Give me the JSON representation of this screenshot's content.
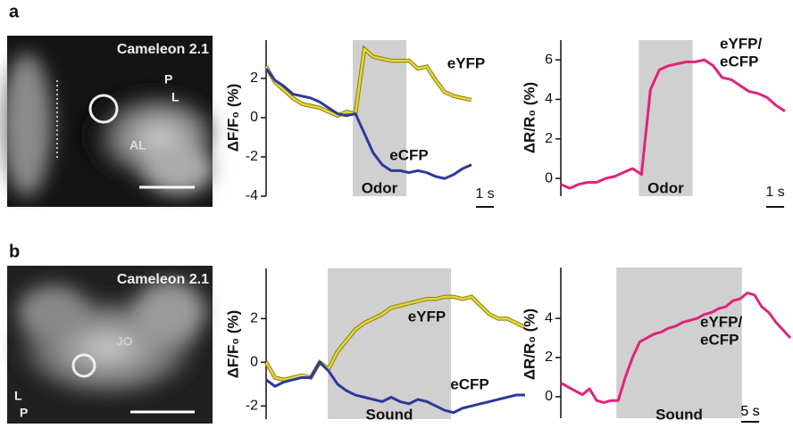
{
  "panel_letters": [
    "a",
    "b"
  ],
  "image_panels": [
    {
      "title": "Cameleon 2.1",
      "labels": [
        "P",
        "L",
        "AL"
      ]
    },
    {
      "title": "Cameleon 2.1",
      "labels": [
        "JO",
        "L",
        "P"
      ]
    }
  ],
  "chart_data": [
    {
      "type": "line",
      "y_label": "ΔF/F₀ (%)",
      "xlim": [
        0,
        11.6
      ],
      "ylim": [
        -4,
        3.95
      ],
      "yticks": [
        -4,
        -2,
        0,
        2
      ],
      "x": [
        0,
        0.5,
        1,
        1.5,
        2,
        2.5,
        3,
        3.5,
        4,
        4.5,
        5,
        5.5,
        6,
        6.5,
        7,
        7.5,
        8,
        8.5,
        9,
        9.5,
        10,
        10.5,
        11,
        11.5
      ],
      "series": [
        {
          "name": "eYFP",
          "color": "#e6d63a",
          "values": [
            2.6,
            1.8,
            1.4,
            1.0,
            0.7,
            0.6,
            0.5,
            0.3,
            0.1,
            0.3,
            0.2,
            3.5,
            3.1,
            3.0,
            2.9,
            2.9,
            2.9,
            2.5,
            2.6,
            1.9,
            1.3,
            1.1,
            1.0,
            0.9
          ]
        },
        {
          "name": "eCFP",
          "color": "#2b3a9a",
          "values": [
            2.5,
            1.9,
            1.6,
            1.2,
            1.1,
            1.0,
            0.8,
            0.5,
            0.2,
            0.1,
            0.2,
            -0.8,
            -1.8,
            -2.4,
            -2.7,
            -2.7,
            -2.8,
            -2.7,
            -2.8,
            -3.0,
            -3.1,
            -2.9,
            -2.6,
            -2.4
          ]
        }
      ],
      "stimulus": {
        "label": "Odor",
        "start": 4.85,
        "end": 7.85
      },
      "scalebar": {
        "label": "1 s",
        "value": 1
      }
    },
    {
      "type": "line",
      "y_label": "ΔR/R₀ (%)",
      "xlim": [
        0,
        12.8
      ],
      "ylim": [
        -0.9,
        7
      ],
      "yticks": [
        0,
        2,
        4,
        6
      ],
      "x": [
        0,
        0.5,
        1,
        1.5,
        2,
        2.5,
        3,
        3.5,
        4,
        4.5,
        5,
        5.5,
        6,
        6.5,
        7,
        7.5,
        8,
        8.5,
        9,
        9.5,
        10,
        10.5,
        11,
        11.5,
        12,
        12.5
      ],
      "series": [
        {
          "name_lines": [
            "eYFP/",
            "eCFP"
          ],
          "color": "#e0247a",
          "values": [
            -0.3,
            -0.5,
            -0.3,
            -0.2,
            -0.2,
            0.0,
            0.1,
            0.3,
            0.5,
            0.2,
            4.5,
            5.5,
            5.7,
            5.8,
            5.9,
            5.9,
            6.0,
            5.7,
            5.1,
            5.0,
            4.7,
            4.4,
            4.3,
            4.1,
            3.7,
            3.4
          ]
        }
      ],
      "stimulus": {
        "label": "Odor",
        "start": 4.35,
        "end": 7.35
      },
      "scalebar": {
        "label": "1 s",
        "value": 1
      }
    },
    {
      "type": "line",
      "y_label": "ΔF/F₀ (%)",
      "xlim": [
        0,
        73
      ],
      "ylim": [
        -2.6,
        4.3
      ],
      "yticks": [
        -2,
        0,
        2
      ],
      "x": [
        0,
        2.5,
        5,
        7.5,
        10,
        12.5,
        15,
        17.5,
        20,
        22.5,
        25,
        27.5,
        30,
        32.5,
        35,
        37.5,
        40,
        42.5,
        45,
        47.5,
        50,
        52.5,
        55,
        57.5,
        60,
        62.5,
        65,
        67.5,
        70,
        72.5
      ],
      "series": [
        {
          "name": "eYFP",
          "color": "#e6d63a",
          "values": [
            0.0,
            -0.7,
            -0.8,
            -0.7,
            -0.6,
            -0.7,
            0.0,
            -0.3,
            0.5,
            1.0,
            1.5,
            1.8,
            2.0,
            2.2,
            2.5,
            2.6,
            2.7,
            2.8,
            2.9,
            2.9,
            3.0,
            3.0,
            2.9,
            3.0,
            2.6,
            2.2,
            2.0,
            2.0,
            1.8,
            1.6
          ]
        },
        {
          "name": "eCFP",
          "color": "#2b3a9a",
          "values": [
            -0.8,
            -1.1,
            -0.9,
            -0.8,
            -0.7,
            -0.7,
            0.0,
            -0.4,
            -1.0,
            -1.3,
            -1.5,
            -1.6,
            -1.7,
            -1.8,
            -1.6,
            -1.8,
            -1.9,
            -1.7,
            -1.8,
            -2.0,
            -2.2,
            -2.3,
            -2.1,
            -2.0,
            -1.9,
            -1.8,
            -1.7,
            -1.6,
            -1.5,
            -1.5
          ]
        }
      ],
      "stimulus": {
        "label": "Sound",
        "start": 17.25,
        "end": 51.75
      },
      "scalebar": {
        "label": "5 s",
        "value": 5
      }
    },
    {
      "type": "line",
      "y_label": "ΔR/R₀ (%)",
      "xlim": [
        0,
        64
      ],
      "ylim": [
        -1.1,
        6.6
      ],
      "yticks": [
        0,
        2,
        4
      ],
      "x": [
        0,
        2,
        4,
        6,
        8,
        10,
        12,
        14,
        16,
        18,
        20,
        22,
        24,
        26,
        28,
        30,
        32,
        34,
        36,
        38,
        40,
        42,
        44,
        46,
        48,
        50,
        52,
        54,
        56,
        58,
        60,
        62,
        64
      ],
      "series": [
        {
          "name_lines": [
            "eYFP/",
            "eCFP"
          ],
          "color": "#e0247a",
          "values": [
            0.7,
            0.5,
            0.3,
            0.1,
            0.4,
            -0.2,
            -0.3,
            -0.2,
            -0.2,
            1.0,
            2.0,
            2.8,
            3.0,
            3.2,
            3.3,
            3.5,
            3.6,
            3.8,
            3.9,
            4.0,
            4.2,
            4.3,
            4.5,
            4.6,
            4.9,
            5.0,
            5.3,
            5.2,
            4.6,
            4.3,
            3.8,
            3.4,
            3.0
          ]
        }
      ],
      "stimulus": {
        "label": "Sound",
        "start": 15.5,
        "end": 50.5
      },
      "scalebar": {
        "label": "5 s",
        "value": 5
      }
    }
  ]
}
